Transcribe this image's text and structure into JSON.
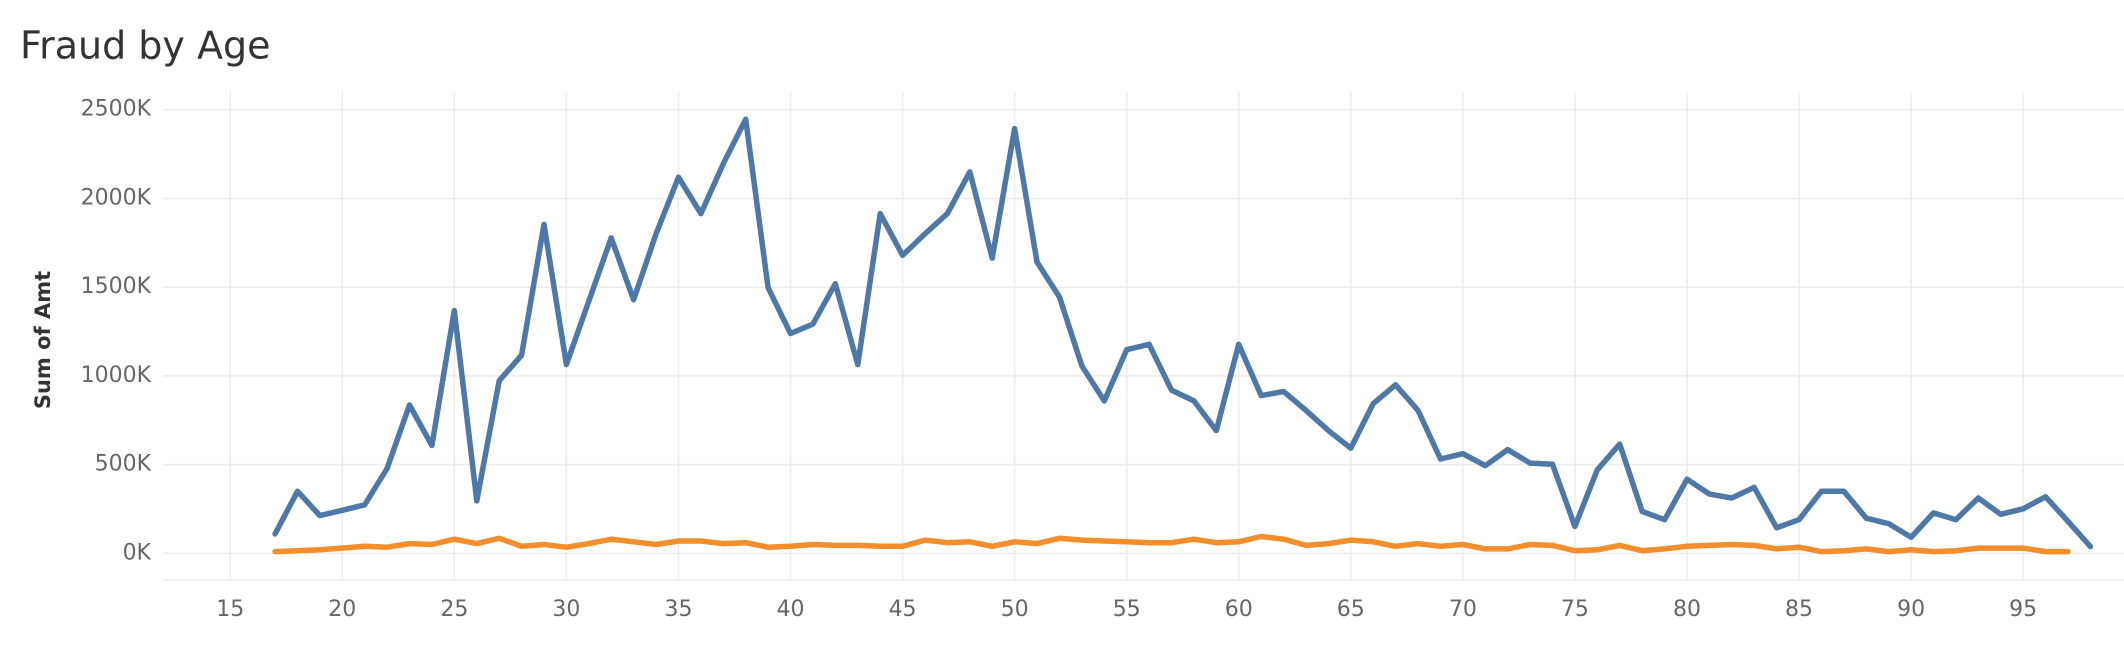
{
  "chart_data": {
    "type": "line",
    "title": "Fraud by Age",
    "y_label": "Sum of Amt",
    "x": [
      17,
      18,
      19,
      20,
      21,
      22,
      23,
      24,
      25,
      26,
      27,
      28,
      29,
      30,
      31,
      32,
      33,
      34,
      35,
      36,
      37,
      38,
      39,
      40,
      41,
      42,
      43,
      44,
      45,
      46,
      47,
      48,
      49,
      50,
      51,
      52,
      53,
      54,
      55,
      56,
      57,
      58,
      59,
      60,
      61,
      62,
      63,
      64,
      65,
      66,
      67,
      68,
      69,
      70,
      71,
      72,
      73,
      74,
      75,
      76,
      77,
      78,
      79,
      80,
      81,
      82,
      83,
      84,
      85,
      86,
      87,
      88,
      89,
      90,
      91,
      92,
      93,
      94,
      95,
      96,
      97,
      98
    ],
    "series": [
      {
        "color": "#4e79a7",
        "values": [
          110000,
          350000,
          213000,
          243000,
          274000,
          479000,
          836000,
          608000,
          1368000,
          296000,
          973000,
          1117000,
          1854000,
          1064000,
          1421000,
          1778000,
          1429000,
          1801000,
          2120000,
          1915000,
          2196000,
          2447000,
          1497000,
          1239000,
          1292000,
          1520000,
          1064000,
          1915000,
          1680000,
          1801000,
          1915000,
          2150000,
          1664000,
          2394000,
          1642000,
          1444000,
          1056000,
          859000,
          1148000,
          1178000,
          920000,
          859000,
          692000,
          1178000,
          889000,
          912000,
          806000,
          692000,
          593000,
          844000,
          950000,
          806000,
          532000,
          562000,
          494000,
          585000,
          509000,
          502000,
          152000,
          471000,
          616000,
          236000,
          190000,
          418000,
          334000,
          312000,
          372000,
          144000,
          190000,
          350000,
          350000,
          198000,
          167000,
          91000,
          228000,
          190000,
          312000,
          220000,
          251000,
          319000,
          180000,
          38000
        ]
      },
      {
        "color": "#f28e2b",
        "values": [
          10000,
          15000,
          20000,
          30000,
          40000,
          35000,
          55000,
          50000,
          80000,
          55000,
          85000,
          40000,
          50000,
          35000,
          55000,
          80000,
          65000,
          50000,
          70000,
          70000,
          55000,
          60000,
          35000,
          40000,
          50000,
          45000,
          45000,
          40000,
          40000,
          75000,
          60000,
          65000,
          40000,
          65000,
          55000,
          85000,
          75000,
          70000,
          65000,
          60000,
          60000,
          80000,
          60000,
          65000,
          95000,
          80000,
          45000,
          55000,
          75000,
          65000,
          40000,
          55000,
          40000,
          50000,
          25000,
          25000,
          50000,
          45000,
          15000,
          20000,
          45000,
          15000,
          25000,
          40000,
          45000,
          50000,
          45000,
          25000,
          35000,
          10000,
          15000,
          25000,
          10000,
          20000,
          10000,
          15000,
          30000,
          30000,
          30000,
          10000,
          10000,
          null
        ]
      }
    ],
    "xlim": [
      12,
      99.5
    ],
    "xticks": [
      15,
      20,
      25,
      30,
      35,
      40,
      45,
      50,
      55,
      60,
      65,
      70,
      75,
      80,
      85,
      90,
      95
    ],
    "ylim": [
      -150000,
      2600000
    ],
    "yticks": [
      {
        "value": 0,
        "label": "0K"
      },
      {
        "value": 500000,
        "label": "500K"
      },
      {
        "value": 1000000,
        "label": "1000K"
      },
      {
        "value": 1500000,
        "label": "1500K"
      },
      {
        "value": 2000000,
        "label": "2000K"
      },
      {
        "value": 2500000,
        "label": "2500K"
      }
    ],
    "grid": true
  }
}
